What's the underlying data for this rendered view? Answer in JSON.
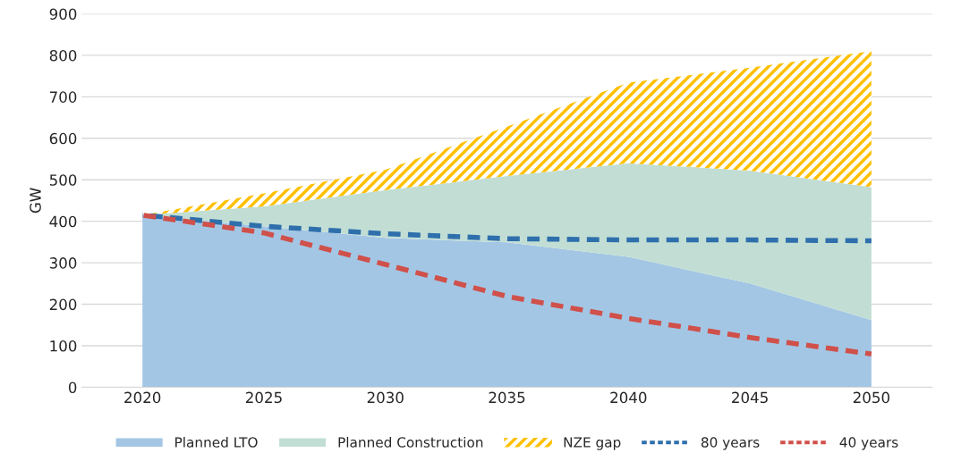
{
  "chart_data": {
    "type": "area",
    "stacked": true,
    "ylabel": "GW",
    "x": [
      2020,
      2025,
      2030,
      2035,
      2040,
      2045,
      2050
    ],
    "xlim": [
      2017.5,
      2052.5
    ],
    "xticks": [
      2020,
      2025,
      2030,
      2035,
      2040,
      2045,
      2050
    ],
    "ylim": [
      0,
      900
    ],
    "yticks": [
      0,
      100,
      200,
      300,
      400,
      500,
      600,
      700,
      800,
      900
    ],
    "grid": "y",
    "legend": "bottom",
    "series": [
      {
        "name": "Planned LTO",
        "color": "#a3c6e4",
        "values": [
          415,
          388,
          360,
          349,
          314,
          250,
          162
        ]
      },
      {
        "name": "Planned Construction",
        "color": "#c2ded4",
        "values": [
          0,
          48,
          115,
          160,
          226,
          272,
          320
        ]
      },
      {
        "name": "NZE gap",
        "color": "#ffc000",
        "values": [
          0,
          31,
          49,
          119,
          194,
          248,
          328
        ]
      },
      {
        "name": "80 years",
        "type": "line",
        "line_style": "dashed",
        "color": "#2e6fac",
        "values": [
          415,
          388,
          370,
          358,
          355,
          355,
          353
        ]
      },
      {
        "name": "40 years",
        "type": "line",
        "line_style": "dashed",
        "color": "#d0504a",
        "values": [
          415,
          372,
          296,
          219,
          166,
          120,
          80
        ]
      }
    ]
  }
}
